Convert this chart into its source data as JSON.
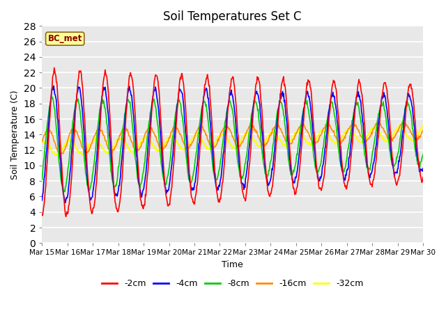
{
  "title": "Soil Temperatures Set C",
  "xlabel": "Time",
  "ylabel": "Soil Temperature (C)",
  "ylim": [
    0,
    28
  ],
  "yticks": [
    0,
    2,
    4,
    6,
    8,
    10,
    12,
    14,
    16,
    18,
    20,
    22,
    24,
    26,
    28
  ],
  "x_labels": [
    "Mar 15",
    "Mar 16",
    "Mar 17",
    "Mar 18",
    "Mar 19",
    "Mar 20",
    "Mar 21",
    "Mar 22",
    "Mar 23",
    "Mar 24",
    "Mar 25",
    "Mar 26",
    "Mar 27",
    "Mar 28",
    "Mar 29",
    "Mar 30"
  ],
  "annotation_text": "BC_met",
  "annotation_color": "#8B0000",
  "annotation_bg": "#FFFF99",
  "plot_bg_color": "#E8E8E8",
  "series": {
    "-2cm": {
      "color": "#FF0000",
      "linewidth": 1.2
    },
    "-4cm": {
      "color": "#0000FF",
      "linewidth": 1.2
    },
    "-8cm": {
      "color": "#00CC00",
      "linewidth": 1.2
    },
    "-16cm": {
      "color": "#FF8C00",
      "linewidth": 1.2
    },
    "-32cm": {
      "color": "#FFFF00",
      "linewidth": 1.5
    }
  },
  "days": 15,
  "n_points": 720
}
